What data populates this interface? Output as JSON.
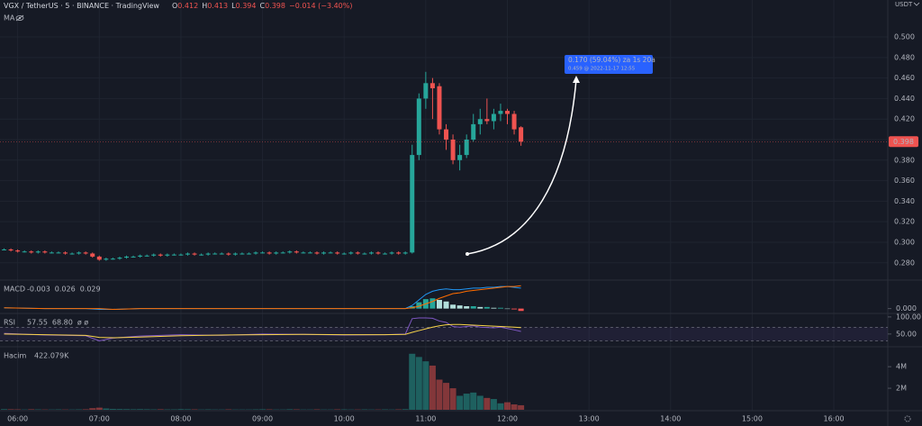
{
  "chart_data": [
    {
      "type": "candlestick",
      "title": "VGX / TetherUS · 5 · BINANCE · TradingView",
      "ohlc_legend": [
        {
          "label": "O",
          "value": "0.412"
        },
        {
          "label": "H",
          "value": "0.413"
        },
        {
          "label": "L",
          "value": "0.394"
        },
        {
          "label": "C",
          "value": "0.398"
        }
      ],
      "change": "−0.014 (−3.40%)",
      "indicator": "MA",
      "currency": "USDT",
      "up_color": "#26a69a",
      "down_color": "#ef5350",
      "x": [
        "05:50",
        "05:55",
        "06:00",
        "06:05",
        "06:10",
        "06:15",
        "06:20",
        "06:25",
        "06:30",
        "06:35",
        "06:40",
        "06:45",
        "06:50",
        "06:55",
        "07:00",
        "07:05",
        "07:10",
        "07:15",
        "07:20",
        "07:25",
        "07:30",
        "07:35",
        "07:40",
        "07:45",
        "07:50",
        "07:55",
        "08:00",
        "08:05",
        "08:10",
        "08:15",
        "08:20",
        "08:25",
        "08:30",
        "08:35",
        "08:40",
        "08:45",
        "08:50",
        "08:55",
        "09:00",
        "09:05",
        "09:10",
        "09:15",
        "09:20",
        "09:25",
        "09:30",
        "09:35",
        "09:40",
        "09:45",
        "09:50",
        "09:55",
        "10:00",
        "10:05",
        "10:10",
        "10:15",
        "10:20",
        "10:25",
        "10:30",
        "10:35",
        "10:40",
        "10:45",
        "10:50",
        "10:55",
        "11:00",
        "11:05",
        "11:10",
        "11:15",
        "11:20",
        "11:25",
        "11:30",
        "11:35",
        "11:40",
        "11:45",
        "11:50",
        "11:55",
        "12:00",
        "12:05",
        "12:10"
      ],
      "open": [
        0.293,
        0.293,
        0.292,
        0.291,
        0.291,
        0.29,
        0.291,
        0.29,
        0.29,
        0.29,
        0.289,
        0.289,
        0.29,
        0.289,
        0.286,
        0.283,
        0.284,
        0.284,
        0.285,
        0.286,
        0.286,
        0.287,
        0.287,
        0.288,
        0.287,
        0.288,
        0.288,
        0.288,
        0.289,
        0.288,
        0.288,
        0.289,
        0.289,
        0.289,
        0.288,
        0.289,
        0.289,
        0.289,
        0.29,
        0.29,
        0.289,
        0.29,
        0.29,
        0.291,
        0.29,
        0.29,
        0.29,
        0.289,
        0.29,
        0.29,
        0.289,
        0.289,
        0.29,
        0.289,
        0.289,
        0.29,
        0.289,
        0.289,
        0.29,
        0.289,
        0.29,
        0.385,
        0.44,
        0.455,
        0.452,
        0.41,
        0.4,
        0.38,
        0.385,
        0.4,
        0.415,
        0.42,
        0.418,
        0.425,
        0.428,
        0.425,
        0.412
      ],
      "high": [
        0.294,
        0.294,
        0.293,
        0.292,
        0.292,
        0.292,
        0.292,
        0.291,
        0.291,
        0.291,
        0.29,
        0.291,
        0.291,
        0.29,
        0.287,
        0.285,
        0.285,
        0.286,
        0.287,
        0.287,
        0.288,
        0.288,
        0.289,
        0.289,
        0.289,
        0.289,
        0.289,
        0.29,
        0.29,
        0.289,
        0.29,
        0.29,
        0.29,
        0.29,
        0.29,
        0.29,
        0.29,
        0.291,
        0.291,
        0.291,
        0.291,
        0.291,
        0.292,
        0.292,
        0.291,
        0.291,
        0.291,
        0.291,
        0.291,
        0.291,
        0.29,
        0.291,
        0.291,
        0.29,
        0.291,
        0.291,
        0.29,
        0.291,
        0.291,
        0.291,
        0.395,
        0.445,
        0.466,
        0.46,
        0.455,
        0.415,
        0.405,
        0.395,
        0.405,
        0.425,
        0.43,
        0.44,
        0.43,
        0.435,
        0.43,
        0.428,
        0.413
      ],
      "low": [
        0.292,
        0.291,
        0.29,
        0.29,
        0.289,
        0.289,
        0.289,
        0.289,
        0.289,
        0.288,
        0.288,
        0.288,
        0.288,
        0.285,
        0.282,
        0.282,
        0.283,
        0.283,
        0.284,
        0.285,
        0.285,
        0.286,
        0.286,
        0.286,
        0.286,
        0.287,
        0.287,
        0.287,
        0.287,
        0.287,
        0.287,
        0.288,
        0.288,
        0.287,
        0.287,
        0.288,
        0.288,
        0.288,
        0.289,
        0.288,
        0.288,
        0.289,
        0.289,
        0.289,
        0.289,
        0.289,
        0.288,
        0.288,
        0.289,
        0.288,
        0.288,
        0.288,
        0.288,
        0.288,
        0.288,
        0.288,
        0.288,
        0.288,
        0.288,
        0.288,
        0.289,
        0.38,
        0.43,
        0.42,
        0.405,
        0.39,
        0.376,
        0.37,
        0.382,
        0.398,
        0.405,
        0.415,
        0.41,
        0.418,
        0.415,
        0.405,
        0.394
      ],
      "close": [
        0.293,
        0.292,
        0.291,
        0.291,
        0.29,
        0.291,
        0.29,
        0.29,
        0.29,
        0.289,
        0.289,
        0.29,
        0.289,
        0.286,
        0.283,
        0.284,
        0.284,
        0.285,
        0.286,
        0.286,
        0.287,
        0.287,
        0.288,
        0.287,
        0.288,
        0.288,
        0.288,
        0.289,
        0.288,
        0.288,
        0.289,
        0.289,
        0.289,
        0.288,
        0.289,
        0.289,
        0.289,
        0.29,
        0.29,
        0.289,
        0.29,
        0.29,
        0.291,
        0.29,
        0.29,
        0.29,
        0.289,
        0.29,
        0.29,
        0.289,
        0.289,
        0.29,
        0.289,
        0.289,
        0.29,
        0.289,
        0.289,
        0.29,
        0.289,
        0.29,
        0.385,
        0.44,
        0.455,
        0.45,
        0.41,
        0.4,
        0.38,
        0.385,
        0.4,
        0.415,
        0.42,
        0.418,
        0.425,
        0.428,
        0.425,
        0.41,
        0.398
      ],
      "xlim": [
        "05:47",
        "16:39"
      ],
      "xticks": [
        "06:00",
        "07:00",
        "08:00",
        "09:00",
        "10:00",
        "11:00",
        "12:00",
        "13:00",
        "14:00",
        "15:00",
        "16:00"
      ],
      "ylim": [
        0.264,
        0.536
      ],
      "yticks": [
        {
          "value": 0.28,
          "label": "0.280"
        },
        {
          "value": 0.3,
          "label": "0.300"
        },
        {
          "value": 0.32,
          "label": "0.320"
        },
        {
          "value": 0.34,
          "label": "0.340"
        },
        {
          "value": 0.36,
          "label": "0.360"
        },
        {
          "value": 0.38,
          "label": "0.380"
        },
        {
          "value": 0.4,
          "label": "0.400"
        },
        {
          "value": 0.42,
          "label": "0.420"
        },
        {
          "value": 0.44,
          "label": "0.440"
        },
        {
          "value": 0.46,
          "label": "0.460"
        },
        {
          "value": 0.48,
          "label": "0.480"
        },
        {
          "value": 0.5,
          "label": "0.500"
        }
      ],
      "price_line": {
        "value": 0.398,
        "label": "0.398"
      },
      "annotation": [
        "0.170 (59.04%) za 1s 20a",
        "0.459 @ 2022-11-17  12:55"
      ],
      "volume": {
        "title": "Hacim",
        "legend_value": "422.079K",
        "values": [
          60000,
          50000,
          40000,
          30000,
          50000,
          40000,
          30000,
          30000,
          40000,
          30000,
          30000,
          40000,
          50000,
          150000,
          200000,
          120000,
          80000,
          70000,
          60000,
          50000,
          60000,
          50000,
          40000,
          50000,
          40000,
          40000,
          60000,
          50000,
          40000,
          30000,
          40000,
          30000,
          30000,
          40000,
          30000,
          30000,
          30000,
          40000,
          50000,
          40000,
          30000,
          30000,
          50000,
          40000,
          30000,
          30000,
          40000,
          30000,
          30000,
          40000,
          40000,
          30000,
          30000,
          40000,
          30000,
          30000,
          40000,
          30000,
          40000,
          60000,
          5200000,
          4900000,
          4500000,
          4100000,
          2800000,
          2500000,
          2000000,
          1300000,
          1500000,
          1600000,
          1300000,
          1100000,
          1000000,
          600000,
          700000,
          500000,
          422079
        ],
        "ylim": [
          0,
          5600000
        ],
        "yticks": [
          {
            "value": 2000000,
            "label": "2M"
          },
          {
            "value": 4000000,
            "label": "4M"
          }
        ]
      }
    },
    {
      "type": "macd",
      "title": "MACD",
      "legend_values": [
        {
          "value": "-0.003",
          "color": "#ef5350"
        },
        {
          "value": "0.026",
          "color": "#2196f3"
        },
        {
          "value": "0.029",
          "color": "#ff6d00"
        }
      ],
      "x": [
        "05:50",
        "06:20",
        "06:50",
        "07:00",
        "07:10",
        "07:30",
        "08:00",
        "08:30",
        "09:00",
        "09:30",
        "10:00",
        "10:30",
        "10:45",
        "10:50",
        "10:55",
        "11:00",
        "11:05",
        "11:10",
        "11:15",
        "11:20",
        "11:25",
        "11:30",
        "11:35",
        "11:40",
        "11:45",
        "11:50",
        "11:55",
        "12:00",
        "12:05",
        "12:10"
      ],
      "series": [
        {
          "color": "#2196f3",
          "values": [
            0.001,
            0.0,
            0.0,
            -0.001,
            -0.001,
            0.0,
            0.0,
            0.0,
            0.0,
            0.0,
            0.0,
            0.0,
            0.0,
            0.004,
            0.011,
            0.018,
            0.022,
            0.024,
            0.025,
            0.024,
            0.024,
            0.025,
            0.026,
            0.026,
            0.027,
            0.027,
            0.028,
            0.028,
            0.027,
            0.026
          ]
        },
        {
          "color": "#ff6d00",
          "values": [
            0.001,
            0.0,
            0.0,
            0.0,
            -0.001,
            0.0,
            0.0,
            0.0,
            0.0,
            0.0,
            0.0,
            0.0,
            0.0,
            0.001,
            0.003,
            0.006,
            0.009,
            0.013,
            0.016,
            0.019,
            0.02,
            0.022,
            0.023,
            0.024,
            0.025,
            0.026,
            0.027,
            0.028,
            0.028,
            0.029
          ]
        }
      ],
      "histogram": {
        "x": [
          "10:50",
          "10:55",
          "11:00",
          "11:05",
          "11:10",
          "11:15",
          "11:20",
          "11:25",
          "11:30",
          "11:35",
          "11:40",
          "11:45",
          "11:50",
          "11:55",
          "12:00",
          "12:05",
          "12:10"
        ],
        "values": [
          0.003,
          0.008,
          0.012,
          0.013,
          0.011,
          0.009,
          0.005,
          0.004,
          0.003,
          0.003,
          0.002,
          0.002,
          0.001,
          0.001,
          0.0,
          -0.001,
          -0.003
        ],
        "colors": [
          "#26a69a",
          "#b2dfdb",
          "#ff5252"
        ]
      },
      "ylim": [
        -0.005,
        0.035
      ],
      "yticks": [
        {
          "value": 0,
          "label": "0.000"
        }
      ]
    },
    {
      "type": "line",
      "title": "RSI",
      "legend_values": [
        {
          "value": "57.55",
          "color": "#7e57c2"
        },
        {
          "value": "68.80",
          "color": "#f7d34a"
        },
        {
          "value": "ø ø",
          "color": "#b2b5be"
        }
      ],
      "x": [
        "05:50",
        "06:20",
        "06:50",
        "07:00",
        "07:10",
        "07:30",
        "08:00",
        "08:30",
        "09:00",
        "09:30",
        "10:00",
        "10:30",
        "10:45",
        "10:50",
        "10:55",
        "11:00",
        "11:05",
        "11:10",
        "11:15",
        "11:20",
        "11:25",
        "11:30",
        "11:35",
        "11:40",
        "11:45",
        "11:50",
        "11:55",
        "12:00",
        "12:05",
        "12:10"
      ],
      "series": [
        {
          "color": "#7e57c2",
          "values": [
            52,
            47,
            45,
            30,
            38,
            44,
            48,
            46,
            50,
            49,
            47,
            48,
            50,
            95,
            97,
            97,
            96,
            88,
            84,
            72,
            70,
            72,
            74,
            70,
            69,
            68,
            70,
            66,
            62,
            57.55
          ]
        },
        {
          "color": "#f7d34a",
          "values": [
            50,
            48,
            46,
            40,
            39,
            41,
            45,
            47,
            48,
            49,
            48,
            48,
            49,
            55,
            60,
            65,
            70,
            74,
            77,
            78,
            78,
            77,
            76,
            75,
            74,
            73,
            72,
            71,
            70,
            68.8
          ]
        }
      ],
      "band": [
        30,
        70
      ],
      "ylim": [
        18,
        105
      ],
      "yticks": [
        {
          "value": 50,
          "label": "50.00"
        },
        {
          "value": 100,
          "label": "100.00"
        }
      ]
    }
  ]
}
